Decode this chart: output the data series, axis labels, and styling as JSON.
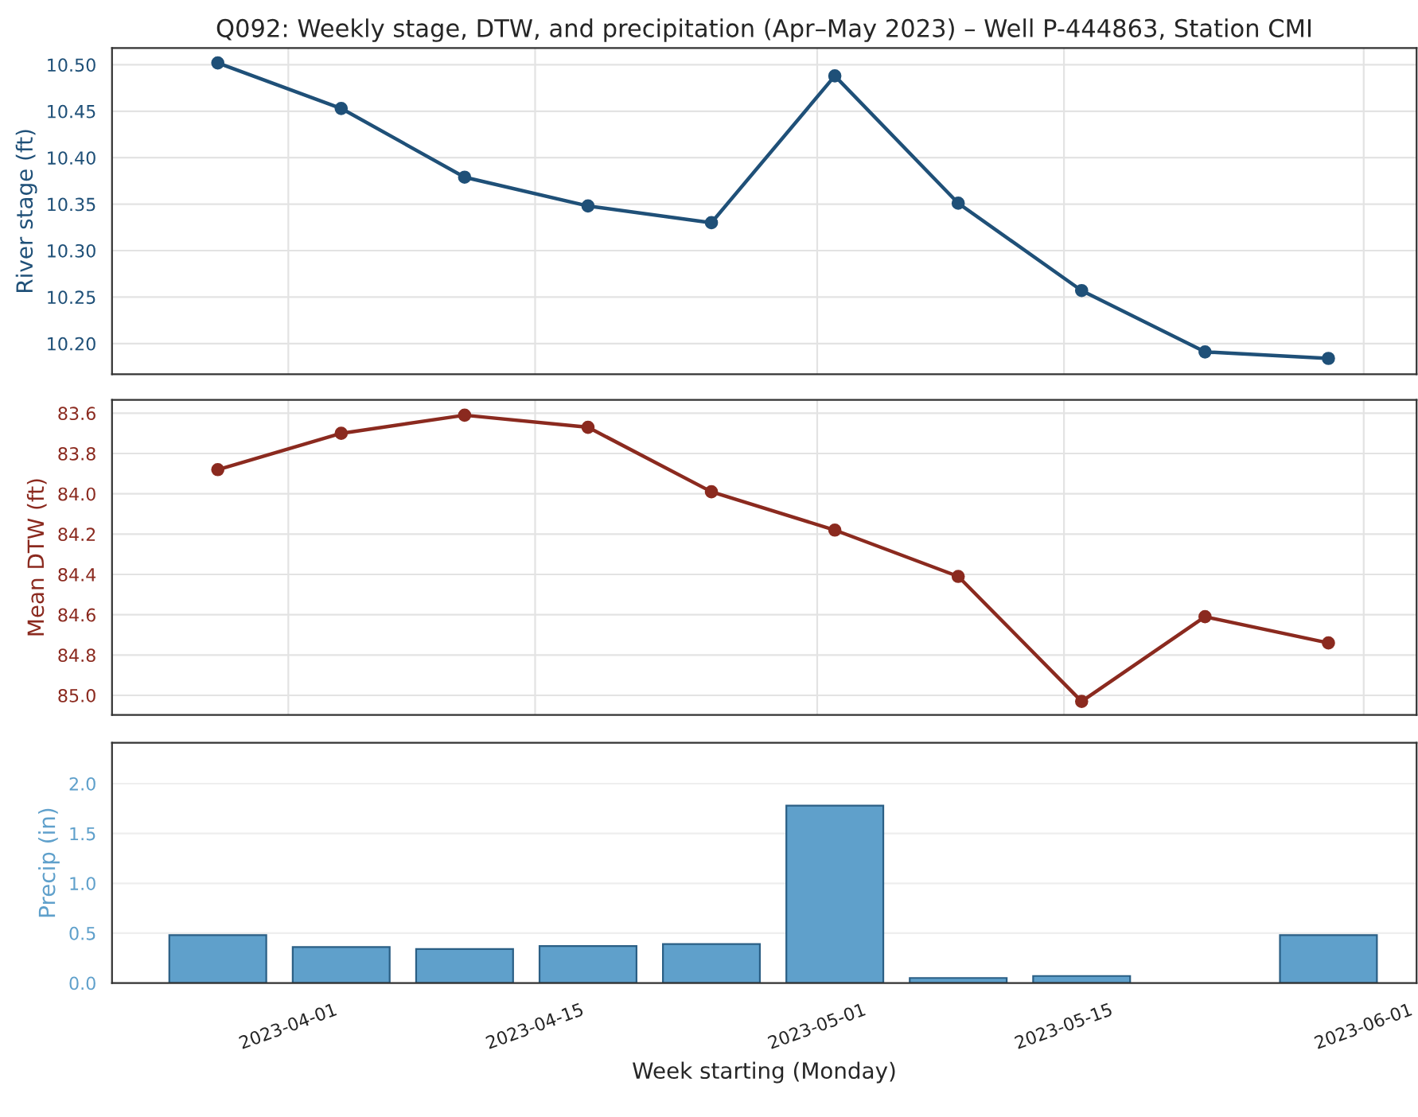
{
  "chart_data": [
    {
      "type": "line",
      "title": "Q092: Weekly stage, DTW, and precipitation (Apr–May 2023) – Well P-444863, Station CMI",
      "ylabel": "River stage (ft)",
      "x": [
        "2023-03-28",
        "2023-04-04",
        "2023-04-11",
        "2023-04-18",
        "2023-04-25",
        "2023-05-02",
        "2023-05-09",
        "2023-05-16",
        "2023-05-23",
        "2023-05-30"
      ],
      "series": [
        {
          "color": "#1f5078",
          "values": [
            10.502,
            10.453,
            10.379,
            10.348,
            10.33,
            10.488,
            10.351,
            10.257,
            10.191,
            10.184
          ]
        }
      ],
      "xlim": [
        "2023-03-22",
        "2023-06-04"
      ],
      "xticks": [
        "2023-04-01",
        "2023-04-15",
        "2023-05-01",
        "2023-05-15",
        "2023-06-01"
      ],
      "ylim": [
        10.167,
        10.518
      ],
      "yticks": [
        {
          "value": 10.2,
          "label": "10.20"
        },
        10.25,
        {
          "value": 10.3,
          "label": "10.30"
        },
        10.35,
        {
          "value": 10.4,
          "label": "10.40"
        },
        10.45,
        {
          "value": 10.5,
          "label": "10.50"
        }
      ],
      "grid": true,
      "marker": "circle",
      "line_style": "solid",
      "tick_labels": "y"
    },
    {
      "type": "line",
      "ylabel": "Mean DTW (ft)",
      "x": [
        "2023-03-28",
        "2023-04-04",
        "2023-04-11",
        "2023-04-18",
        "2023-04-25",
        "2023-05-02",
        "2023-05-09",
        "2023-05-16",
        "2023-05-23",
        "2023-05-30"
      ],
      "series": [
        {
          "color": "#8b2a1f",
          "values": [
            83.88,
            83.7,
            83.61,
            83.67,
            83.99,
            84.18,
            84.41,
            85.03,
            84.61,
            84.74
          ]
        }
      ],
      "xlim": [
        "2023-03-22",
        "2023-06-04"
      ],
      "xticks": [
        "2023-04-01",
        "2023-04-15",
        "2023-05-01",
        "2023-05-15",
        "2023-06-01"
      ],
      "ylim": [
        85.097,
        83.534
      ],
      "yticks": [
        83.6,
        83.8,
        {
          "value": 84,
          "label": "84.0"
        },
        84.2,
        84.4,
        84.6,
        84.8,
        {
          "value": 85,
          "label": "85.0"
        }
      ],
      "grid": true,
      "marker": "circle",
      "line_style": "solid",
      "tick_labels": "y"
    },
    {
      "type": "bar",
      "ylabel": "Precip (in)",
      "xlabel": "Week starting (Monday)",
      "x": [
        "2023-03-28",
        "2023-04-04",
        "2023-04-11",
        "2023-04-18",
        "2023-04-25",
        "2023-05-02",
        "2023-05-09",
        "2023-05-16",
        "2023-05-23",
        "2023-05-30"
      ],
      "series": [
        {
          "color": "#5fa0cb",
          "values": [
            0.48,
            0.36,
            0.34,
            0.37,
            0.39,
            1.78,
            0.05,
            0.07,
            null,
            0.48
          ]
        }
      ],
      "xlim": [
        "2023-03-22",
        "2023-06-04"
      ],
      "xticks": [
        "2023-04-01",
        "2023-04-15",
        "2023-05-01",
        "2023-05-15",
        "2023-06-01"
      ],
      "ylim": [
        0,
        2.41
      ],
      "yticks": [
        {
          "value": 0,
          "label": "0.0"
        },
        0.5,
        {
          "value": 1,
          "label": "1.0"
        },
        1.5,
        {
          "value": 2,
          "label": "2.0"
        }
      ],
      "grid": "y"
    }
  ]
}
